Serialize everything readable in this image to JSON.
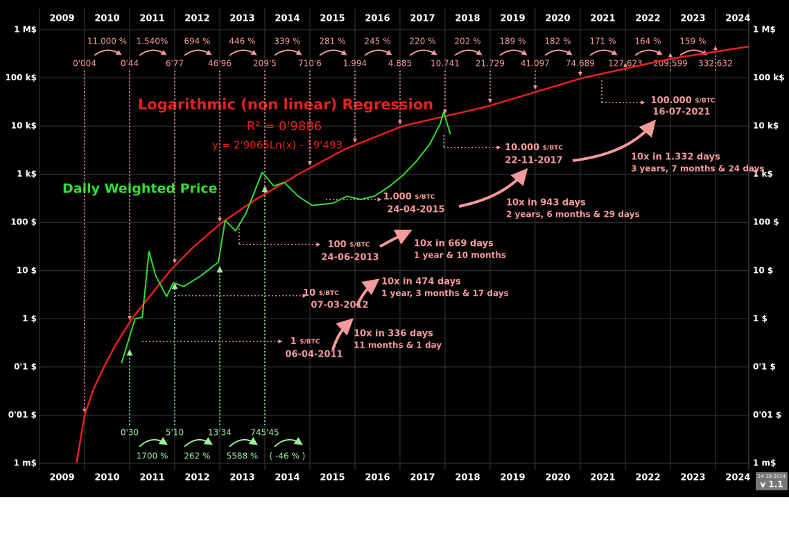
{
  "chart_data": {
    "type": "line",
    "log_y": true,
    "grid": true,
    "xlim": [
      2009,
      2024.74
    ],
    "xticks": [
      2009,
      2010,
      2011,
      2012,
      2013,
      2014,
      2015,
      2016,
      2017,
      2018,
      2019,
      2020,
      2021,
      2022,
      2023,
      2024
    ],
    "ylim": [
      0.001,
      1000000
    ],
    "yticks": [
      {
        "value": 0.001,
        "label": "1 m$"
      },
      {
        "value": 0.01,
        "label": "0'01 $"
      },
      {
        "value": 0.1,
        "label": "0'1 $"
      },
      {
        "value": 1,
        "label": "1 $"
      },
      {
        "value": 10,
        "label": "10 $"
      },
      {
        "value": 100,
        "label": "100 $"
      },
      {
        "value": 1000,
        "label": "1 k$"
      },
      {
        "value": 10000,
        "label": "10 k$"
      },
      {
        "value": 100000,
        "label": "100 k$"
      },
      {
        "value": 1000000,
        "label": "1 M$"
      }
    ],
    "series": [
      {
        "name": "Daily Weighted Price",
        "color": "#33dd33",
        "x": [
          2010.82,
          2011.12,
          2011.28,
          2011.43,
          2011.58,
          2011.82,
          2011.97,
          2012.2,
          2012.58,
          2012.97,
          2013.12,
          2013.35,
          2013.58,
          2013.94,
          2014.2,
          2014.43,
          2014.74,
          2015.05,
          2015.51,
          2015.82,
          2016.12,
          2016.43,
          2016.74,
          2017.05,
          2017.35,
          2017.66,
          2017.89,
          2017.97,
          2018.05,
          2018.12
        ],
        "values": [
          0.12,
          1,
          1.07,
          24.9,
          7.8,
          2.9,
          5.6,
          4.7,
          7.8,
          15,
          110,
          67,
          153,
          1100,
          570,
          680,
          350,
          226,
          250,
          350,
          300,
          350,
          540,
          930,
          1800,
          4200,
          11000,
          19600,
          11000,
          6800
        ]
      },
      {
        "name": "Logarithmic (non linear) Regression",
        "color": "#e8201e",
        "x": [
          2009.82,
          2010.0,
          2010.2,
          2010.43,
          2010.7,
          2011.05,
          2011.9,
          2012.4,
          2013.05,
          2013.8,
          2014.74,
          2015.8,
          2017.05,
          2018.9,
          2021.05,
          2023.0,
          2024.74
        ],
        "values": [
          0.001,
          0.01,
          0.035,
          0.1,
          0.3,
          1,
          10,
          30,
          100,
          300,
          1000,
          3400,
          10000,
          25000,
          100000,
          250000,
          450000
        ]
      }
    ],
    "annotations": {
      "r_squared": "R² = 0'9886",
      "equation": "y = 2'9065Ln(x) - 19'493",
      "top_growth": [
        "11.000 %",
        "1.540%",
        "694 %",
        "446 %",
        "339 %",
        "281 %",
        "245 %",
        "220 %",
        "202 %",
        "189 %",
        "182 %",
        "171 %",
        "164 %",
        "159 %"
      ],
      "top_prices": [
        "0'004",
        "0'44",
        "6'77",
        "46'96",
        "209'5",
        "710'6",
        "1.994",
        "4.885",
        "10.741",
        "21.729",
        "41.097",
        "74.689",
        "127.623",
        "209.599",
        "332.632"
      ],
      "bottom_prices": [
        "0'30",
        "5'10",
        "13'34",
        "745'45"
      ],
      "bottom_growth": [
        "1700 %",
        "262 %",
        "5588 %",
        "( -46 % )"
      ],
      "milestones": [
        {
          "price": "1",
          "unit": "$/BTC",
          "date": "06-04-2011"
        },
        {
          "price": "10",
          "unit": "$/BTC",
          "date": "07-03-2012"
        },
        {
          "price": "100",
          "unit": "$/BTC",
          "date": "24-06-2013"
        },
        {
          "price": "1.000",
          "unit": "$/BTC",
          "date": "24-04-2015"
        },
        {
          "price": "10.000",
          "unit": "$/BTC",
          "date": "22-11-2017"
        },
        {
          "price": "100.000",
          "unit": "$/BTC",
          "date": "16-07-2021"
        }
      ],
      "intervals": [
        {
          "days": "10x in 336 days",
          "span": "11 months & 1 day"
        },
        {
          "days": "10x in 474 days",
          "span": "1 year, 3 months & 17 days"
        },
        {
          "days": "10x in 669 days",
          "span": "1 year & 10 months"
        },
        {
          "days": "10x in 943 days",
          "span": "2 years, 6 months & 29 days"
        },
        {
          "days": "10x  in 1.332 days",
          "span": "3 years, 7 months & 24 days"
        }
      ],
      "version_date": "14-10-2014",
      "version": "v 1.1"
    }
  }
}
